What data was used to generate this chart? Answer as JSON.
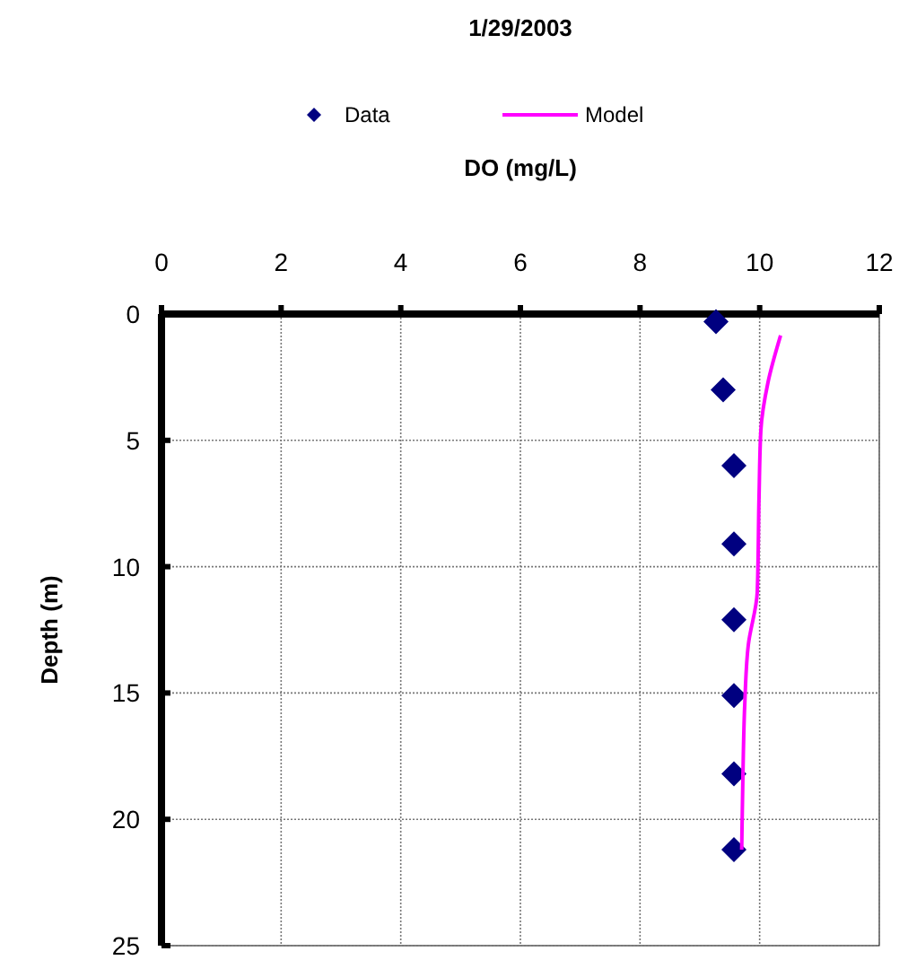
{
  "chart_data": {
    "type": "scatter",
    "title": "1/29/2003",
    "xlabel": "DO (mg/L)",
    "ylabel": "Depth (m)",
    "xlim": [
      0,
      12
    ],
    "xticks": [
      0,
      2,
      4,
      6,
      8,
      10,
      12
    ],
    "ylim": [
      25,
      0
    ],
    "yticks": [
      0,
      5,
      10,
      15,
      20,
      25
    ],
    "grid": true,
    "legend": "top",
    "series": [
      {
        "name": "Data",
        "marker": "diamond",
        "color": "#000080",
        "x": [
          9.27,
          9.39,
          9.57,
          9.57,
          9.57,
          9.57,
          9.57,
          9.57
        ],
        "values": [
          0.3,
          3.0,
          6.0,
          9.1,
          12.1,
          15.1,
          18.2,
          21.2
        ]
      },
      {
        "name": "Model",
        "type": "line",
        "marker": "none",
        "line_style": "solid",
        "color": "#ff00ff",
        "x": [
          10.35,
          10.14,
          10.02,
          9.99,
          9.96,
          9.81,
          9.75,
          9.72,
          9.7
        ],
        "values": [
          0.85,
          2.7,
          4.6,
          7.2,
          11.0,
          13.1,
          15.5,
          18.3,
          21.2
        ]
      }
    ]
  }
}
